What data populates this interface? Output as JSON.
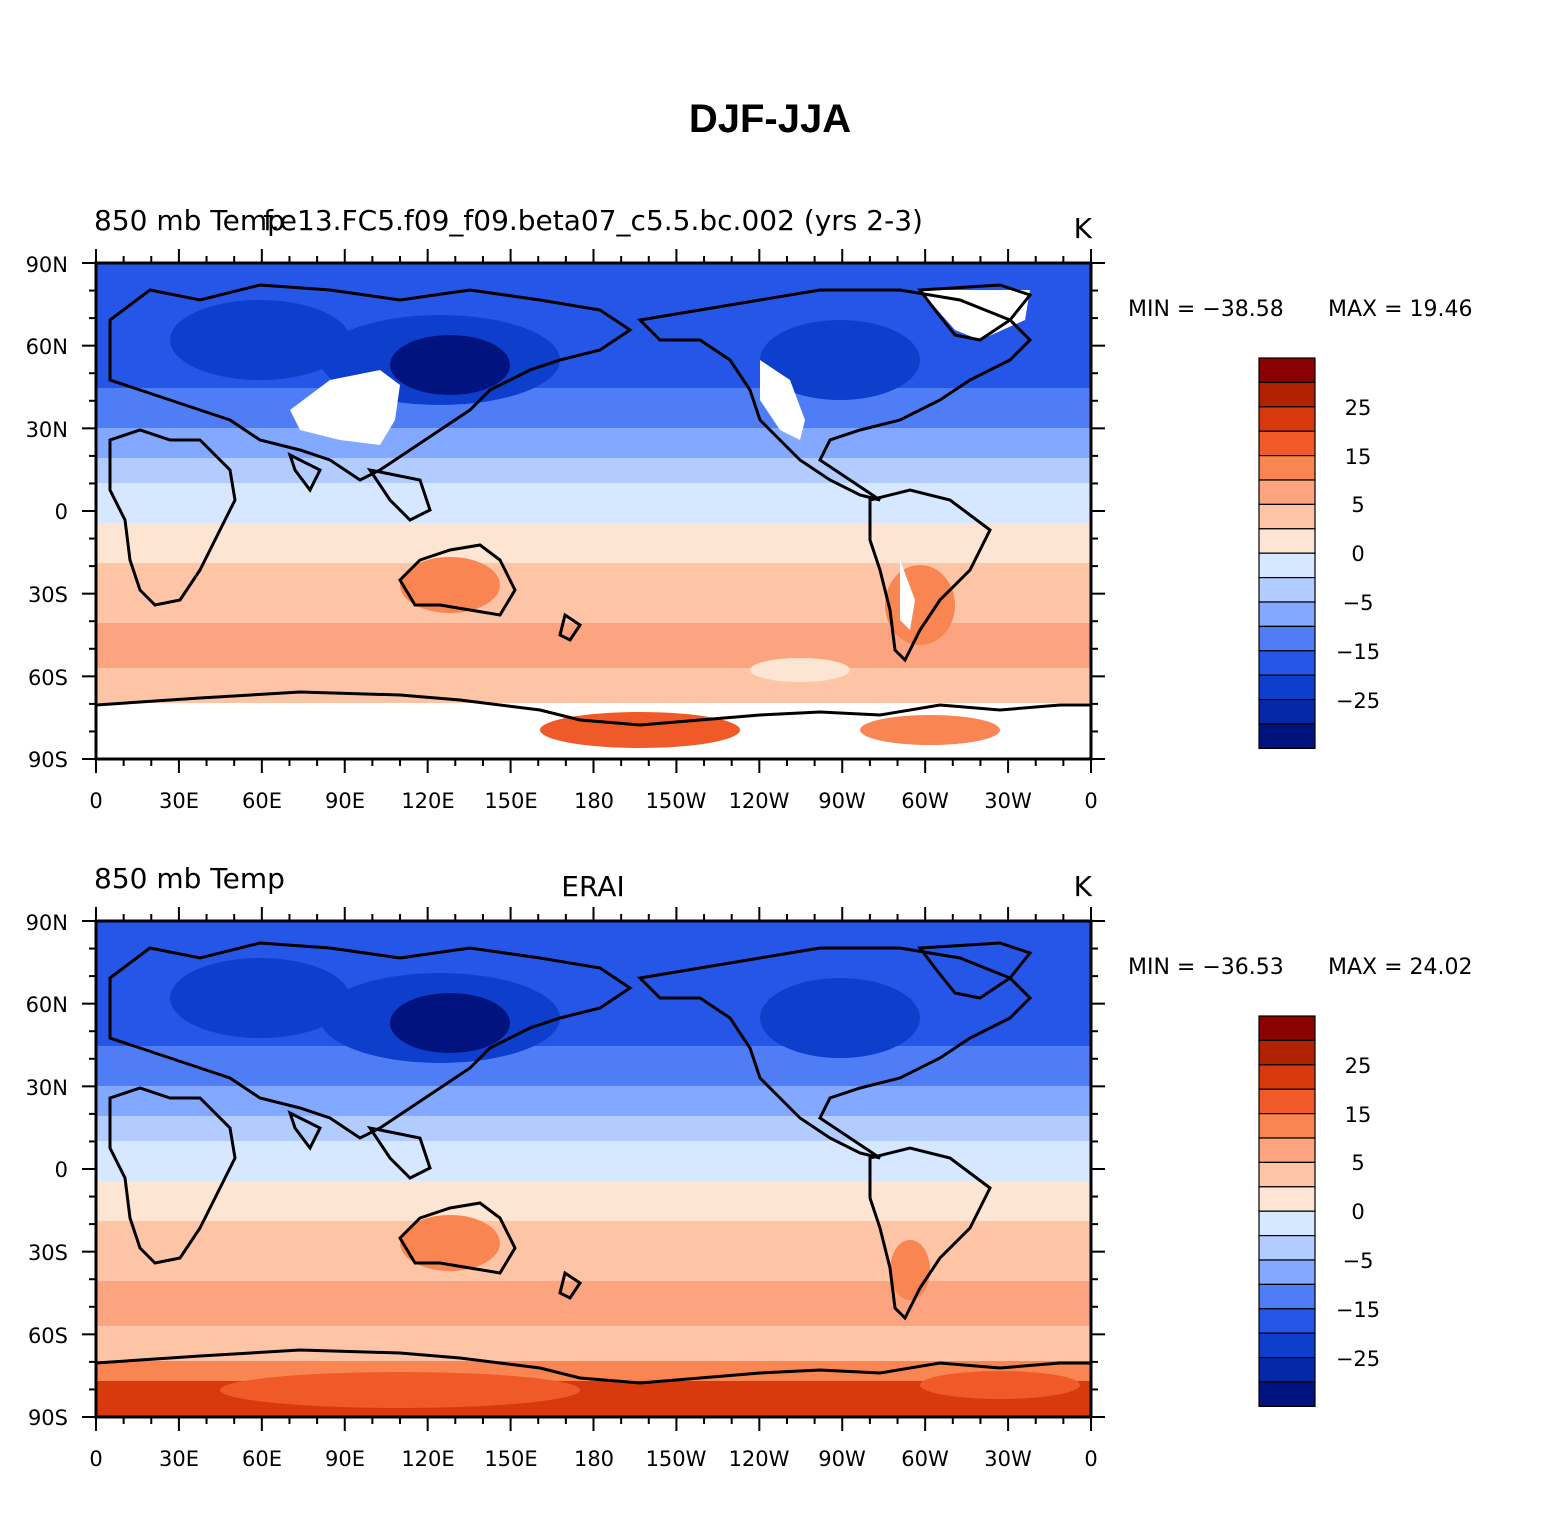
{
  "figure": {
    "title": "DJF-JJA",
    "panels": [
      {
        "id": "model",
        "left_label": "850 mb Temp",
        "center_label": "f.e13.FC5.f09_f09.beta07_c5.5.bc.002 (yrs 2-3)",
        "right_label": "K",
        "min_label": "MIN = −38.58",
        "max_label": "MAX =   19.46"
      },
      {
        "id": "obs",
        "left_label": "850 mb Temp",
        "center_label": "ERAI",
        "right_label": "K",
        "min_label": "MIN = −36.53",
        "max_label": "MAX =   24.02"
      }
    ],
    "y_ticks": [
      "90N",
      "60N",
      "30N",
      "0",
      "30S",
      "60S",
      "90S"
    ],
    "x_ticks": [
      "0",
      "30E",
      "60E",
      "90E",
      "120E",
      "150E",
      "180",
      "150W",
      "120W",
      "90W",
      "60W",
      "30W",
      "0"
    ],
    "colorbar_labels": [
      "25",
      "15",
      "5",
      "0",
      "−5",
      "−15",
      "−25"
    ],
    "colorbar_colors": [
      "#8b0000",
      "#b22200",
      "#d83a0d",
      "#f05a28",
      "#f98552",
      "#fca47f",
      "#fdc5a6",
      "#fde5d3",
      "#d6e8ff",
      "#b3ccff",
      "#83a8ff",
      "#4f7df5",
      "#2556e8",
      "#0d3fcc",
      "#0528a8",
      "#00137e"
    ]
  },
  "chart_data": {
    "type": "heatmap",
    "title": "DJF-JJA",
    "variable": "850 mb Temp",
    "units": "K",
    "contour_levels": [
      -35,
      -30,
      -25,
      -20,
      -15,
      -10,
      -5,
      -2.5,
      0,
      2.5,
      5,
      10,
      15,
      20,
      25,
      30
    ],
    "xlim": [
      "0",
      "0"
    ],
    "ylim": [
      "90S",
      "90N"
    ],
    "grid": false,
    "panels": [
      {
        "name": "f.e13.FC5.f09_f09.beta07_c5.5.bc.002 (yrs 2-3)",
        "min": -38.58,
        "max": 19.46
      },
      {
        "name": "ERAI",
        "min": -36.53,
        "max": 24.02
      }
    ]
  }
}
